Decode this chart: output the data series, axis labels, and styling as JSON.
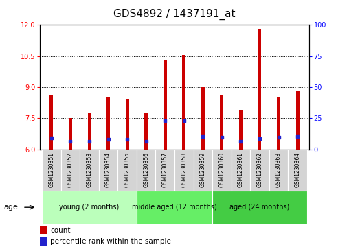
{
  "title": "GDS4892 / 1437191_at",
  "samples": [
    "GSM1230351",
    "GSM1230352",
    "GSM1230353",
    "GSM1230354",
    "GSM1230355",
    "GSM1230356",
    "GSM1230357",
    "GSM1230358",
    "GSM1230359",
    "GSM1230360",
    "GSM1230361",
    "GSM1230362",
    "GSM1230363",
    "GSM1230364"
  ],
  "count_values": [
    8.6,
    7.5,
    7.75,
    8.55,
    8.4,
    7.75,
    10.3,
    10.55,
    9.0,
    8.6,
    7.9,
    11.8,
    8.55,
    8.85
  ],
  "percentile_values": [
    6.55,
    6.4,
    6.38,
    6.48,
    6.48,
    6.38,
    7.38,
    7.38,
    6.62,
    6.58,
    6.38,
    6.52,
    6.58,
    6.62
  ],
  "ylim_left": [
    6,
    12
  ],
  "ylim_right": [
    0,
    100
  ],
  "yticks_left": [
    6,
    7.5,
    9,
    10.5,
    12
  ],
  "yticks_right": [
    0,
    25,
    50,
    75,
    100
  ],
  "bar_color": "#cc0000",
  "marker_color": "#2222cc",
  "bar_width": 0.18,
  "groups": [
    {
      "label": "young (2 months)",
      "start": 0,
      "end": 5
    },
    {
      "label": "middle aged (12 months)",
      "start": 5,
      "end": 9
    },
    {
      "label": "aged (24 months)",
      "start": 9,
      "end": 14
    }
  ],
  "group_colors": [
    "#bbffbb",
    "#66ee66",
    "#44cc44"
  ],
  "age_label": "age",
  "legend_count": "count",
  "legend_percentile": "percentile rank within the sample",
  "plot_bg": "#ffffff",
  "title_fontsize": 11,
  "tick_fontsize": 7,
  "sample_fontsize": 5.5,
  "group_fontsize": 7,
  "legend_fontsize": 7.5
}
